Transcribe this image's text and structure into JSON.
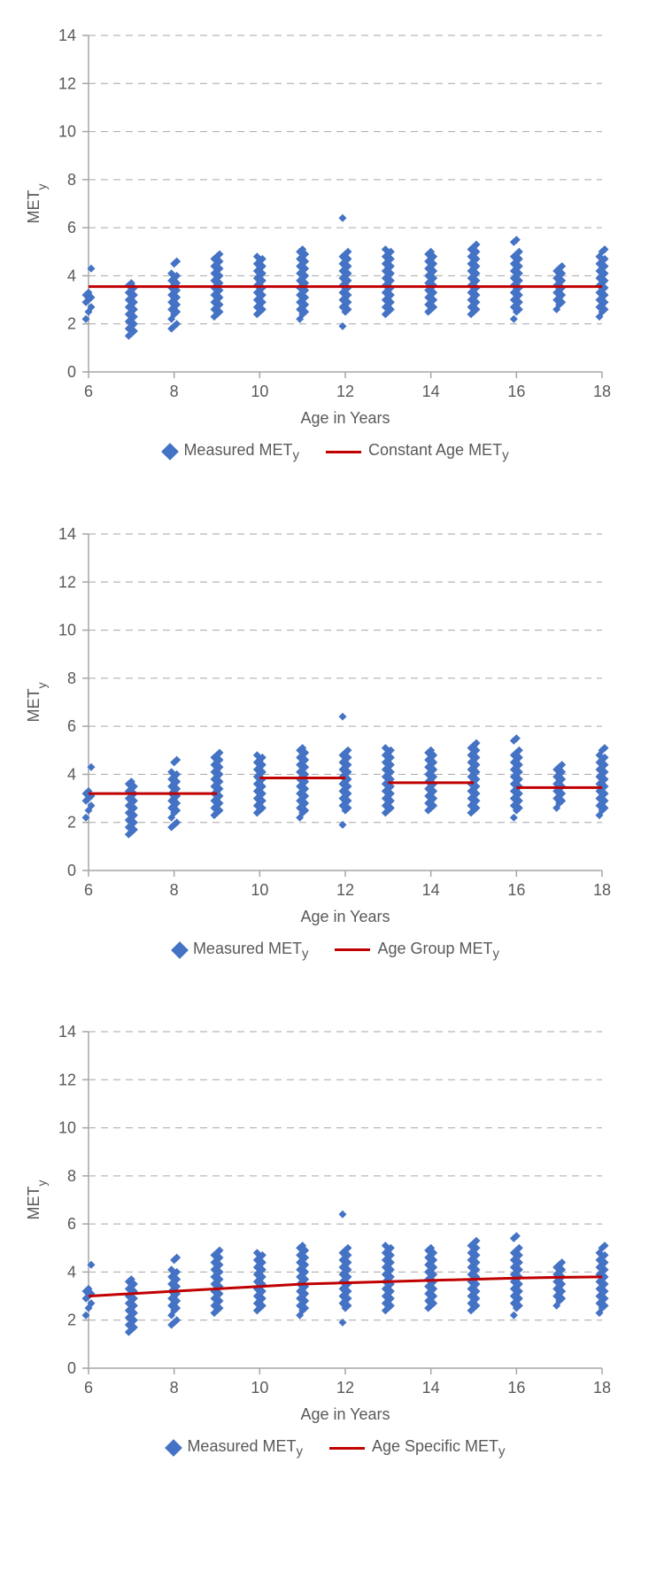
{
  "global": {
    "xlabel": "Age in Years",
    "ylabel": "METy",
    "ylabel_sub": "y",
    "xlim": [
      6,
      18
    ],
    "ylim": [
      0,
      14
    ],
    "xticks": [
      6,
      8,
      10,
      12,
      14,
      16,
      18
    ],
    "yticks": [
      0,
      2,
      4,
      6,
      8,
      10,
      12,
      14
    ],
    "grid_color": "#a6a6a6",
    "axis_color": "#a6a6a6",
    "tick_color": "#595959",
    "marker_color": "#4472c4",
    "line_color": "#c00000",
    "line_width": 3,
    "marker_size": 9,
    "background": "#ffffff",
    "font_size_axis": 20,
    "font_size_tick": 18,
    "legend_marker_label": "Measured METy"
  },
  "scatter_ages": [
    6,
    7,
    8,
    9,
    10,
    11,
    12,
    13,
    14,
    15,
    16,
    17,
    18
  ],
  "scatter_data": {
    "6": [
      2.2,
      2.5,
      2.7,
      2.9,
      3.0,
      3.1,
      3.2,
      3.3,
      4.3
    ],
    "7": [
      1.5,
      1.6,
      1.7,
      1.8,
      1.9,
      2.0,
      2.1,
      2.2,
      2.3,
      2.4,
      2.5,
      2.6,
      2.7,
      2.8,
      2.9,
      3.0,
      3.1,
      3.2,
      3.3,
      3.4,
      3.5,
      3.6,
      3.7
    ],
    "8": [
      1.8,
      1.9,
      2.0,
      2.2,
      2.4,
      2.5,
      2.6,
      2.7,
      2.8,
      2.9,
      3.0,
      3.1,
      3.2,
      3.3,
      3.4,
      3.5,
      3.6,
      3.7,
      3.8,
      3.9,
      4.0,
      4.1,
      4.5,
      4.6
    ],
    "9": [
      2.3,
      2.4,
      2.5,
      2.6,
      2.7,
      2.8,
      2.9,
      3.0,
      3.1,
      3.2,
      3.3,
      3.4,
      3.5,
      3.6,
      3.7,
      3.8,
      3.9,
      4.0,
      4.1,
      4.2,
      4.3,
      4.4,
      4.5,
      4.6,
      4.7,
      4.8,
      4.9
    ],
    "10": [
      2.4,
      2.5,
      2.6,
      2.7,
      2.8,
      2.9,
      3.0,
      3.1,
      3.2,
      3.3,
      3.4,
      3.5,
      3.6,
      3.7,
      3.8,
      3.9,
      4.0,
      4.1,
      4.2,
      4.3,
      4.4,
      4.5,
      4.6,
      4.7,
      4.8
    ],
    "11": [
      2.2,
      2.4,
      2.5,
      2.6,
      2.7,
      2.8,
      2.9,
      3.0,
      3.1,
      3.2,
      3.3,
      3.4,
      3.5,
      3.6,
      3.7,
      3.8,
      3.9,
      4.0,
      4.1,
      4.2,
      4.3,
      4.4,
      4.5,
      4.6,
      4.7,
      4.8,
      4.9,
      5.0,
      5.1
    ],
    "12": [
      1.9,
      2.5,
      2.6,
      2.7,
      2.8,
      2.9,
      3.0,
      3.1,
      3.2,
      3.3,
      3.4,
      3.5,
      3.6,
      3.7,
      3.8,
      3.9,
      4.0,
      4.1,
      4.2,
      4.3,
      4.4,
      4.5,
      4.6,
      4.7,
      4.8,
      4.9,
      5.0,
      6.4
    ],
    "13": [
      2.4,
      2.5,
      2.6,
      2.7,
      2.8,
      2.9,
      3.0,
      3.1,
      3.2,
      3.3,
      3.4,
      3.5,
      3.6,
      3.7,
      3.8,
      3.9,
      4.0,
      4.1,
      4.2,
      4.3,
      4.4,
      4.5,
      4.6,
      4.7,
      4.8,
      4.9,
      5.0,
      5.1
    ],
    "14": [
      2.5,
      2.6,
      2.7,
      2.8,
      2.9,
      3.0,
      3.1,
      3.2,
      3.3,
      3.4,
      3.5,
      3.6,
      3.7,
      3.8,
      3.9,
      4.0,
      4.1,
      4.2,
      4.3,
      4.4,
      4.5,
      4.6,
      4.7,
      4.8,
      4.9,
      5.0
    ],
    "15": [
      2.4,
      2.5,
      2.6,
      2.7,
      2.8,
      2.9,
      3.0,
      3.1,
      3.2,
      3.3,
      3.4,
      3.5,
      3.6,
      3.7,
      3.8,
      3.9,
      4.0,
      4.1,
      4.2,
      4.3,
      4.4,
      4.5,
      4.6,
      4.7,
      4.8,
      4.9,
      5.0,
      5.1,
      5.2,
      5.3
    ],
    "16": [
      2.2,
      2.5,
      2.6,
      2.7,
      2.8,
      2.9,
      3.0,
      3.1,
      3.2,
      3.3,
      3.4,
      3.5,
      3.6,
      3.7,
      3.8,
      3.9,
      4.0,
      4.1,
      4.2,
      4.3,
      4.4,
      4.5,
      4.6,
      4.7,
      4.8,
      4.9,
      5.0,
      5.4,
      5.5
    ],
    "17": [
      2.6,
      2.8,
      2.9,
      3.0,
      3.1,
      3.2,
      3.3,
      3.4,
      3.5,
      3.6,
      3.7,
      3.8,
      3.9,
      4.0,
      4.1,
      4.2,
      4.3,
      4.4
    ],
    "18": [
      2.3,
      2.5,
      2.6,
      2.7,
      2.8,
      2.9,
      3.0,
      3.1,
      3.2,
      3.3,
      3.4,
      3.5,
      3.6,
      3.7,
      3.8,
      3.9,
      4.0,
      4.1,
      4.2,
      4.3,
      4.4,
      4.5,
      4.6,
      4.7,
      4.8,
      5.0,
      5.1
    ]
  },
  "charts": [
    {
      "legend_line_label": "Constant Age METy",
      "line_type": "constant",
      "line_value": 3.55
    },
    {
      "legend_line_label": "Age Group METy",
      "line_type": "step",
      "line_segments": [
        {
          "x1": 6,
          "x2": 9,
          "y": 3.2
        },
        {
          "x1": 10,
          "x2": 12,
          "y": 3.85
        },
        {
          "x1": 13,
          "x2": 15,
          "y": 3.65
        },
        {
          "x1": 16,
          "x2": 18,
          "y": 3.45
        }
      ]
    },
    {
      "legend_line_label": "Age Specific METy",
      "line_type": "points",
      "line_points": [
        {
          "x": 6,
          "y": 3.0
        },
        {
          "x": 7,
          "y": 3.1
        },
        {
          "x": 8,
          "y": 3.2
        },
        {
          "x": 9,
          "y": 3.3
        },
        {
          "x": 10,
          "y": 3.4
        },
        {
          "x": 11,
          "y": 3.5
        },
        {
          "x": 12,
          "y": 3.55
        },
        {
          "x": 13,
          "y": 3.6
        },
        {
          "x": 14,
          "y": 3.65
        },
        {
          "x": 15,
          "y": 3.7
        },
        {
          "x": 16,
          "y": 3.75
        },
        {
          "x": 17,
          "y": 3.78
        },
        {
          "x": 18,
          "y": 3.8
        }
      ]
    }
  ]
}
